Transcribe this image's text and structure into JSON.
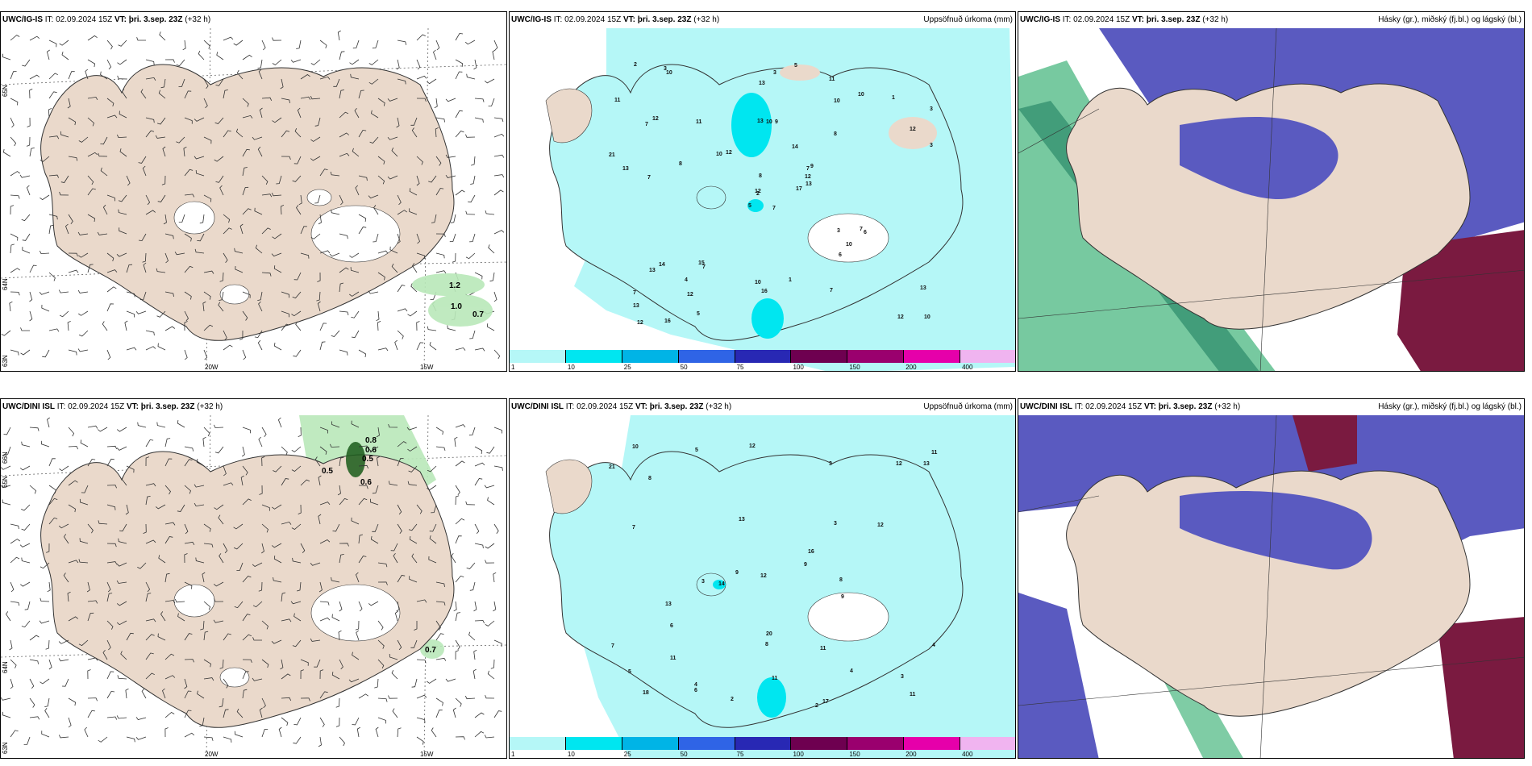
{
  "panels": [
    {
      "id": "r1c1",
      "model": "UWC/IG-IS",
      "it": "IT: 02.09.2024 15Z",
      "vt_label": "VT:",
      "vt_value": "þri. 3.sep. 23Z",
      "lead": "(+32 h)",
      "title_right": "",
      "kind": "wind",
      "lat_labels": [
        "65N",
        "64N",
        "63N"
      ],
      "lon_labels": [
        "20W",
        "15W"
      ],
      "values": [
        "1.2",
        "1.0",
        "0.7"
      ]
    },
    {
      "id": "r1c2",
      "model": "UWC/IG-IS",
      "it": "IT: 02.09.2024 15Z",
      "vt_label": "VT:",
      "vt_value": "þri. 3.sep. 23Z",
      "lead": "(+32 h)",
      "title_right": "Uppsöfnuð úrkoma (mm)",
      "kind": "precip"
    },
    {
      "id": "r1c3",
      "model": "UWC/IG-IS",
      "it": "IT: 02.09.2024 15Z",
      "vt_label": "VT:",
      "vt_value": "þri. 3.sep. 23Z",
      "lead": "(+32 h)",
      "title_right": "Hásky (gr.), miðský (fj.bl.) og lágský (bl.)",
      "kind": "cloud"
    },
    {
      "id": "r2c1",
      "model": "UWC/DINI ISL",
      "it": "IT: 02.09.2024 15Z",
      "vt_label": "VT:",
      "vt_value": "þri. 3.sep. 23Z",
      "lead": "(+32 h)",
      "title_right": "",
      "kind": "wind",
      "lat_labels": [
        "66N",
        "65N",
        "64N",
        "63N"
      ],
      "lon_labels": [
        "20W",
        "15W"
      ],
      "values": [
        "0.8",
        "0.6",
        "0.5",
        "0.5",
        "0.6",
        "0.7"
      ]
    },
    {
      "id": "r2c2",
      "model": "UWC/DINI ISL",
      "it": "IT: 02.09.2024 15Z",
      "vt_label": "VT:",
      "vt_value": "þri. 3.sep. 23Z",
      "lead": "(+32 h)",
      "title_right": "Uppsöfnuð úrkoma (mm)",
      "kind": "precip"
    },
    {
      "id": "r2c3",
      "model": "UWC/DINI ISL",
      "it": "IT: 02.09.2024 15Z",
      "vt_label": "VT:",
      "vt_value": "þri. 3.sep. 23Z",
      "lead": "(+32 h)",
      "title_right": "Hásky (gr.), miðský (fj.bl.) og lágský (bl.)",
      "kind": "cloud"
    }
  ],
  "colorbar": {
    "ticks": [
      "1",
      "10",
      "25",
      "50",
      "75",
      "100",
      "150",
      "200",
      "400"
    ],
    "colors": [
      "#b5f7f7",
      "#00e6f0",
      "#00b4e6",
      "#2f64e6",
      "#2828b4",
      "#6e0050",
      "#9a006e",
      "#e600aa",
      "#f0b4f0"
    ]
  },
  "precip_numbers_top": [
    "7",
    "7",
    "2",
    "7",
    "7",
    "7",
    "11",
    "9",
    "10",
    "17",
    "10",
    "10",
    "7",
    "3",
    "5",
    "8",
    "16",
    "13",
    "14",
    "14",
    "12",
    "13",
    "12",
    "10",
    "9",
    "6",
    "12",
    "13",
    "13",
    "3",
    "3",
    "12",
    "10",
    "8",
    "11",
    "10",
    "15",
    "12",
    "13",
    "7",
    "5",
    "10",
    "8",
    "6",
    "5",
    "21",
    "12",
    "12",
    "16",
    "13",
    "13",
    "12",
    "11",
    "10",
    "7",
    "4",
    "3",
    "2",
    "1",
    "1",
    "3"
  ],
  "precip_numbers_bottom": [
    "2",
    "2",
    "4",
    "4",
    "5",
    "8",
    "3",
    "11",
    "12",
    "13",
    "12",
    "11",
    "9",
    "8",
    "3",
    "9",
    "7",
    "6",
    "14",
    "21",
    "11",
    "11",
    "16",
    "18",
    "12",
    "13",
    "7",
    "6",
    "10",
    "9",
    "12",
    "17",
    "20",
    "13",
    "11",
    "8",
    "4",
    "5",
    "3",
    "3"
  ],
  "colors": {
    "land": "#ead9cb",
    "sea": "#ffffff",
    "precip_light": "#b5f7f7",
    "cloud_high": "#3aa27a",
    "cloud_mid": "#5a5ac0",
    "cloud_low": "#7a1a40"
  }
}
